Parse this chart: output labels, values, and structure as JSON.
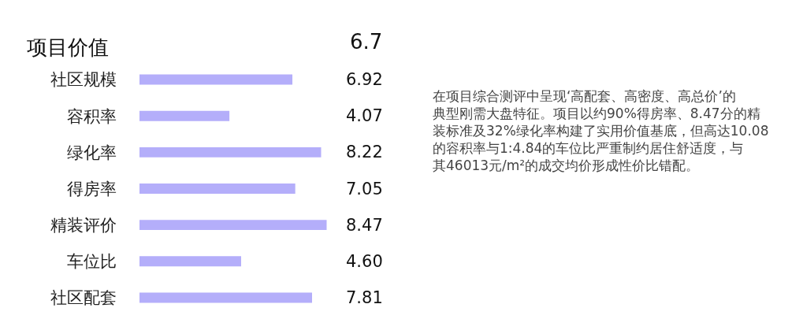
{
  "chart_data": {
    "type": "bar",
    "orientation": "horizontal",
    "title": "项目价值",
    "categories": [
      "社区规模",
      "容积率",
      "绿化率",
      "得房率",
      "精装评价",
      "车位比",
      "社区配套"
    ],
    "values": [
      6.92,
      4.07,
      8.22,
      7.05,
      8.47,
      4.6,
      7.81
    ],
    "value_labels": [
      "6.92",
      "4.07",
      "8.22",
      "7.05",
      "8.47",
      "4.60",
      "7.81"
    ],
    "color": "#b4aefa",
    "tick_labels": "y",
    "legend": false,
    "annotations": [
      "6.7",
      "在项目综合测评中呈现‘高配套、高密度、高总价’的典型刚需大盘特征。项目以约90%得房率、8.47分的精装标准及32%绿化率构建了实用价值基底，但高达10.08的容积率与1:4.84的车位比严重制约居住舒适度，与其46013元/m²的成交均价形成性价比错配。"
    ]
  }
}
